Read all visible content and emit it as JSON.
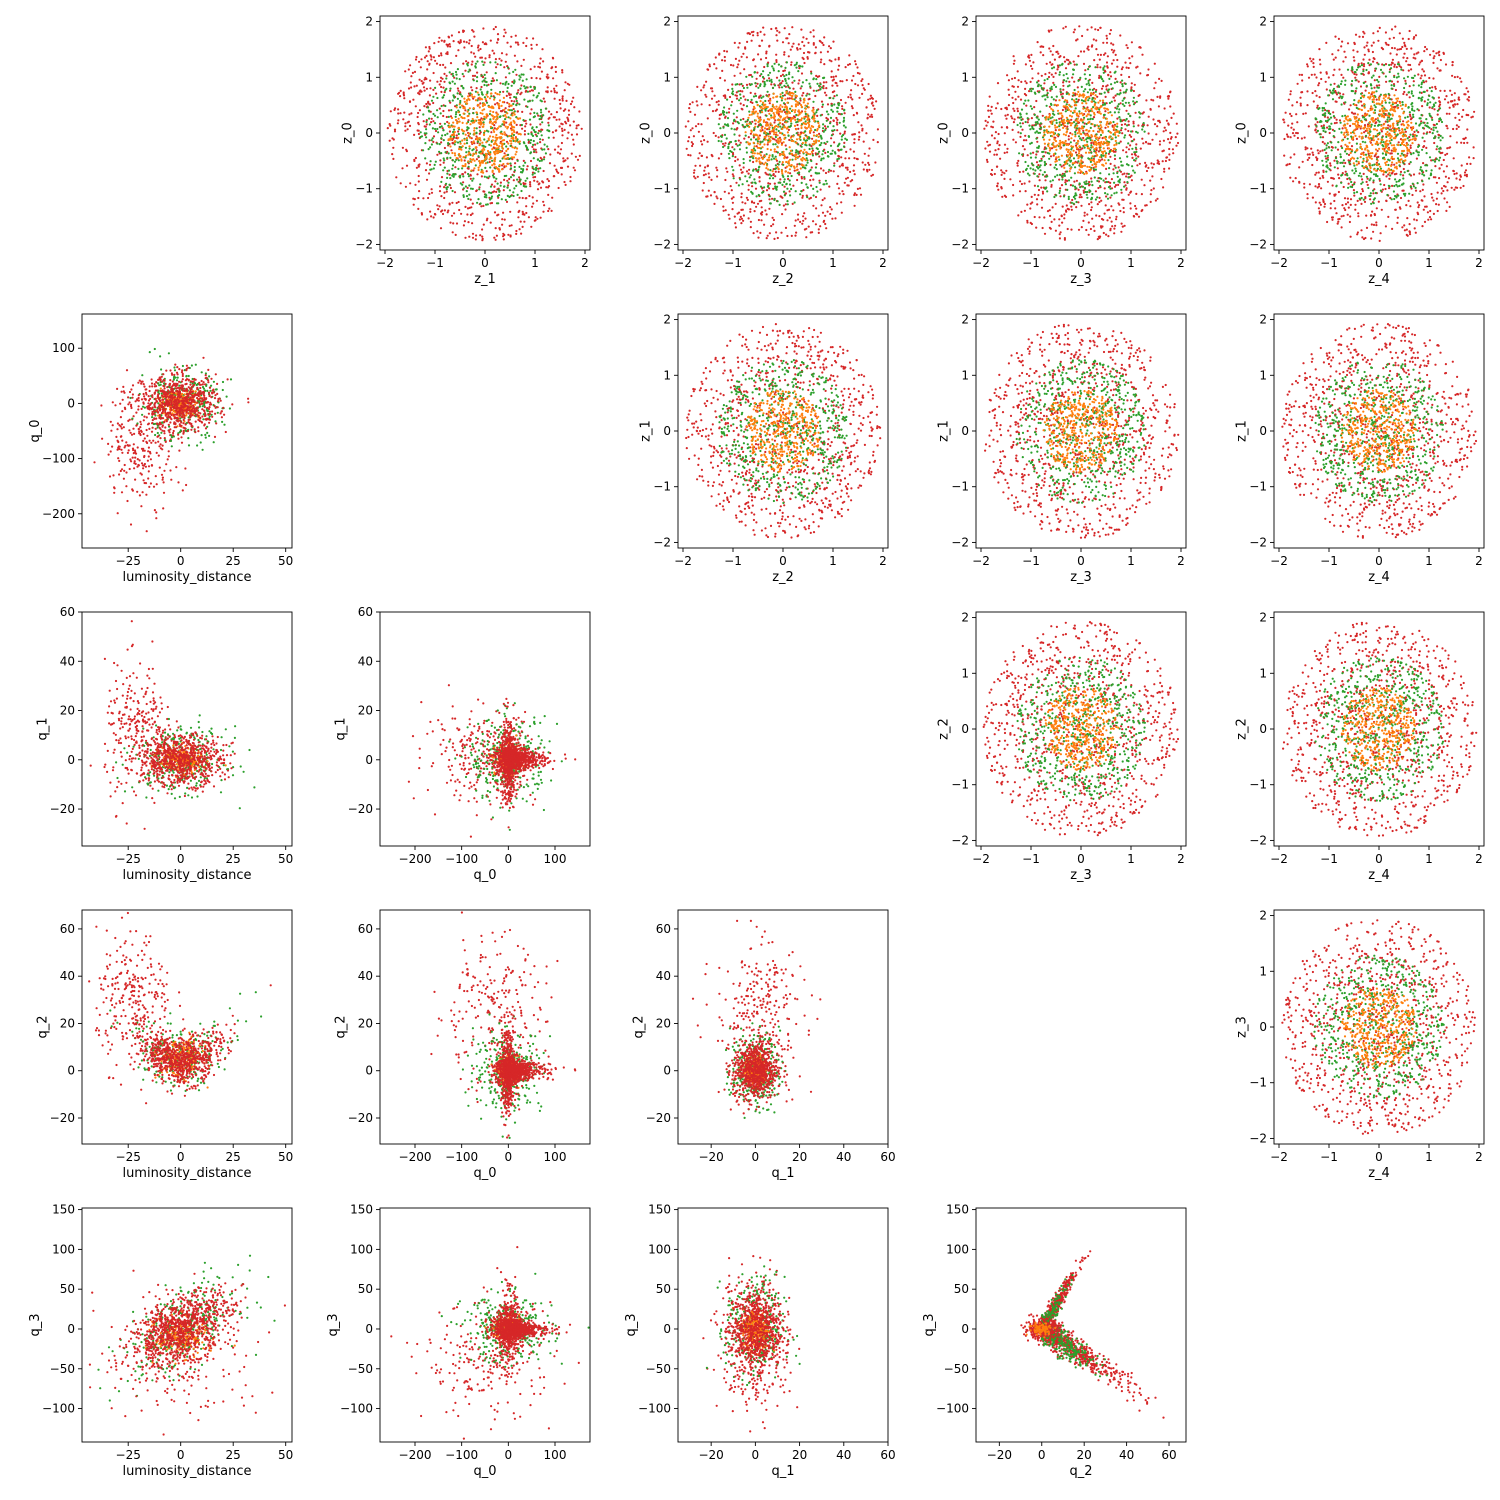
{
  "colors": {
    "low": "#ff7f0e",
    "mid": "#2ca02c",
    "high": "#d62728",
    "axis": "#000000"
  },
  "chart_data": [
    {
      "type": "scatter",
      "row": 0,
      "col": 1,
      "xlabel": "z_1",
      "ylabel": "z_0",
      "xlim": [
        -2.1,
        2.1
      ],
      "ylim": [
        -2.1,
        2.1
      ],
      "xticks": [
        -2,
        -1,
        0,
        1,
        2
      ],
      "yticks": [
        -2,
        -1,
        0,
        1,
        2
      ],
      "pattern": "disk",
      "params": {
        "r": 1.95
      }
    },
    {
      "type": "scatter",
      "row": 0,
      "col": 2,
      "xlabel": "z_2",
      "ylabel": "z_0",
      "xlim": [
        -2.1,
        2.1
      ],
      "ylim": [
        -2.1,
        2.1
      ],
      "xticks": [
        -2,
        -1,
        0,
        1,
        2
      ],
      "yticks": [
        -2,
        -1,
        0,
        1,
        2
      ],
      "pattern": "disk",
      "params": {
        "r": 1.95
      }
    },
    {
      "type": "scatter",
      "row": 0,
      "col": 3,
      "xlabel": "z_3",
      "ylabel": "z_0",
      "xlim": [
        -2.1,
        2.1
      ],
      "ylim": [
        -2.1,
        2.1
      ],
      "xticks": [
        -2,
        -1,
        0,
        1,
        2
      ],
      "yticks": [
        -2,
        -1,
        0,
        1,
        2
      ],
      "pattern": "disk",
      "params": {
        "r": 1.95
      }
    },
    {
      "type": "scatter",
      "row": 0,
      "col": 4,
      "xlabel": "z_4",
      "ylabel": "z_0",
      "xlim": [
        -2.1,
        2.1
      ],
      "ylim": [
        -2.1,
        2.1
      ],
      "xticks": [
        -2,
        -1,
        0,
        1,
        2
      ],
      "yticks": [
        -2,
        -1,
        0,
        1,
        2
      ],
      "pattern": "disk",
      "params": {
        "r": 1.95
      }
    },
    {
      "type": "scatter",
      "row": 1,
      "col": 0,
      "xlabel": "luminosity_distance",
      "ylabel": "q_0",
      "xlim": [
        -47,
        53
      ],
      "ylim": [
        -262,
        162
      ],
      "xticks": [
        -25,
        0,
        25,
        50
      ],
      "yticks": [
        -200,
        -100,
        0,
        100
      ],
      "pattern": "blob",
      "params": {
        "sx": 9,
        "sy": 25,
        "ox": -18,
        "oy": -70,
        "osx": 9,
        "osy": 55
      }
    },
    {
      "type": "scatter",
      "row": 1,
      "col": 2,
      "xlabel": "z_2",
      "ylabel": "z_1",
      "xlim": [
        -2.1,
        2.1
      ],
      "ylim": [
        -2.1,
        2.1
      ],
      "xticks": [
        -2,
        -1,
        0,
        1,
        2
      ],
      "yticks": [
        -2,
        -1,
        0,
        1,
        2
      ],
      "pattern": "disk",
      "params": {
        "r": 1.95
      }
    },
    {
      "type": "scatter",
      "row": 1,
      "col": 3,
      "xlabel": "z_3",
      "ylabel": "z_1",
      "xlim": [
        -2.1,
        2.1
      ],
      "ylim": [
        -2.1,
        2.1
      ],
      "xticks": [
        -2,
        -1,
        0,
        1,
        2
      ],
      "yticks": [
        -2,
        -1,
        0,
        1,
        2
      ],
      "pattern": "disk",
      "params": {
        "r": 1.95
      }
    },
    {
      "type": "scatter",
      "row": 1,
      "col": 4,
      "xlabel": "z_4",
      "ylabel": "z_1",
      "xlim": [
        -2.1,
        2.1
      ],
      "ylim": [
        -2.1,
        2.1
      ],
      "xticks": [
        -2,
        -1,
        0,
        1,
        2
      ],
      "yticks": [
        -2,
        -1,
        0,
        1,
        2
      ],
      "pattern": "disk",
      "params": {
        "r": 1.95
      }
    },
    {
      "type": "scatter",
      "row": 2,
      "col": 0,
      "xlabel": "luminosity_distance",
      "ylabel": "q_1",
      "xlim": [
        -47,
        53
      ],
      "ylim": [
        -35,
        60
      ],
      "xticks": [
        -25,
        0,
        25,
        50
      ],
      "yticks": [
        -20,
        0,
        20,
        40,
        60
      ],
      "pattern": "blob",
      "params": {
        "sx": 10,
        "sy": 5,
        "ox": -20,
        "oy": 10,
        "osx": 8,
        "osy": 14
      }
    },
    {
      "type": "scatter",
      "row": 2,
      "col": 1,
      "xlabel": "q_0",
      "ylabel": "q_1",
      "xlim": [
        -275,
        175
      ],
      "ylim": [
        -35,
        60
      ],
      "xticks": [
        -200,
        -100,
        0,
        100
      ],
      "yticks": [
        -20,
        0,
        20,
        40,
        60
      ],
      "pattern": "cross",
      "params": {
        "sx": 35,
        "sy": 6,
        "ox": -60,
        "oy": 2,
        "osx": 60,
        "osy": 10
      }
    },
    {
      "type": "scatter",
      "row": 2,
      "col": 4,
      "xlabel": "z_4",
      "ylabel": "z_2",
      "xlim": [
        -2.1,
        2.1
      ],
      "ylim": [
        -2.1,
        2.1
      ],
      "xticks": [
        -2,
        -1,
        0,
        1,
        2
      ],
      "yticks": [
        -2,
        -1,
        0,
        1,
        2
      ],
      "pattern": "disk",
      "params": {
        "r": 1.95
      }
    },
    {
      "type": "scatter",
      "row": 2,
      "col": 3,
      "xlabel": "z_3",
      "ylabel": "z_2",
      "xlim": [
        -2.1,
        2.1
      ],
      "ylim": [
        -2.1,
        2.1
      ],
      "xticks": [
        -2,
        -1,
        0,
        1,
        2
      ],
      "yticks": [
        -2,
        -1,
        0,
        1,
        2
      ],
      "pattern": "disk",
      "params": {
        "r": 1.95
      }
    },
    {
      "type": "scatter",
      "row": 3,
      "col": 0,
      "xlabel": "luminosity_distance",
      "ylabel": "q_2",
      "xlim": [
        -47,
        53
      ],
      "ylim": [
        -31,
        68
      ],
      "xticks": [
        -25,
        0,
        25,
        50
      ],
      "yticks": [
        -20,
        0,
        20,
        40,
        60
      ],
      "pattern": "banana",
      "params": {
        "sx": 10,
        "sy": 5,
        "ox": -22,
        "oy": 30,
        "osx": 9,
        "osy": 14
      }
    },
    {
      "type": "scatter",
      "row": 3,
      "col": 1,
      "xlabel": "q_0",
      "ylabel": "q_2",
      "xlim": [
        -275,
        175
      ],
      "ylim": [
        -31,
        68
      ],
      "xticks": [
        -200,
        -100,
        0,
        100
      ],
      "yticks": [
        -20,
        0,
        20,
        40,
        60
      ],
      "pattern": "cross",
      "params": {
        "sx": 30,
        "sy": 6,
        "ox": -40,
        "oy": 25,
        "osx": 60,
        "osy": 16
      }
    },
    {
      "type": "scatter",
      "row": 3,
      "col": 2,
      "xlabel": "q_1",
      "ylabel": "q_2",
      "xlim": [
        -35,
        60
      ],
      "ylim": [
        -31,
        68
      ],
      "xticks": [
        -20,
        0,
        20,
        40,
        60
      ],
      "yticks": [
        -20,
        0,
        20,
        40,
        60
      ],
      "pattern": "blob",
      "params": {
        "sx": 5,
        "sy": 6,
        "ox": 2,
        "oy": 25,
        "osx": 10,
        "osy": 15
      }
    },
    {
      "type": "scatter",
      "row": 3,
      "col": 4,
      "xlabel": "z_4",
      "ylabel": "z_3",
      "xlim": [
        -2.1,
        2.1
      ],
      "ylim": [
        -2.1,
        2.1
      ],
      "xticks": [
        -2,
        -1,
        0,
        1,
        2
      ],
      "yticks": [
        -2,
        -1,
        0,
        1,
        2
      ],
      "pattern": "disk",
      "params": {
        "r": 1.95
      }
    },
    {
      "type": "scatter",
      "row": 4,
      "col": 0,
      "xlabel": "luminosity_distance",
      "ylabel": "q_3",
      "xlim": [
        -47,
        53
      ],
      "ylim": [
        -142,
        152
      ],
      "xticks": [
        -25,
        0,
        25,
        50
      ],
      "yticks": [
        -100,
        -50,
        0,
        50,
        100,
        150
      ],
      "pattern": "tilt",
      "params": {
        "sx": 12,
        "sy": 20,
        "k": 1.2
      }
    },
    {
      "type": "scatter",
      "row": 4,
      "col": 1,
      "xlabel": "q_0",
      "ylabel": "q_3",
      "xlim": [
        -275,
        175
      ],
      "ylim": [
        -142,
        152
      ],
      "xticks": [
        -200,
        -100,
        0,
        100
      ],
      "yticks": [
        -100,
        -50,
        0,
        50,
        100,
        150
      ],
      "pattern": "cross",
      "params": {
        "sx": 40,
        "sy": 15,
        "ox": -40,
        "oy": -40,
        "osx": 70,
        "osy": 35
      }
    },
    {
      "type": "scatter",
      "row": 4,
      "col": 2,
      "xlabel": "q_1",
      "ylabel": "q_3",
      "xlim": [
        -35,
        60
      ],
      "ylim": [
        -142,
        152
      ],
      "xticks": [
        -20,
        0,
        20,
        40,
        60
      ],
      "yticks": [
        -100,
        -50,
        0,
        50,
        100,
        150
      ],
      "pattern": "blob",
      "params": {
        "sx": 6,
        "sy": 25,
        "ox": 0,
        "oy": -20,
        "osx": 8,
        "osy": 45
      }
    },
    {
      "type": "scatter",
      "row": 4,
      "col": 3,
      "xlabel": "q_2",
      "ylabel": "q_3",
      "xlim": [
        -31,
        68
      ],
      "ylim": [
        -142,
        152
      ],
      "xticks": [
        -20,
        0,
        20,
        40,
        60
      ],
      "yticks": [
        -100,
        -50,
        0,
        50,
        100,
        150
      ],
      "pattern": "vee",
      "params": {
        "up": 4.5,
        "down": -1.7
      }
    }
  ]
}
